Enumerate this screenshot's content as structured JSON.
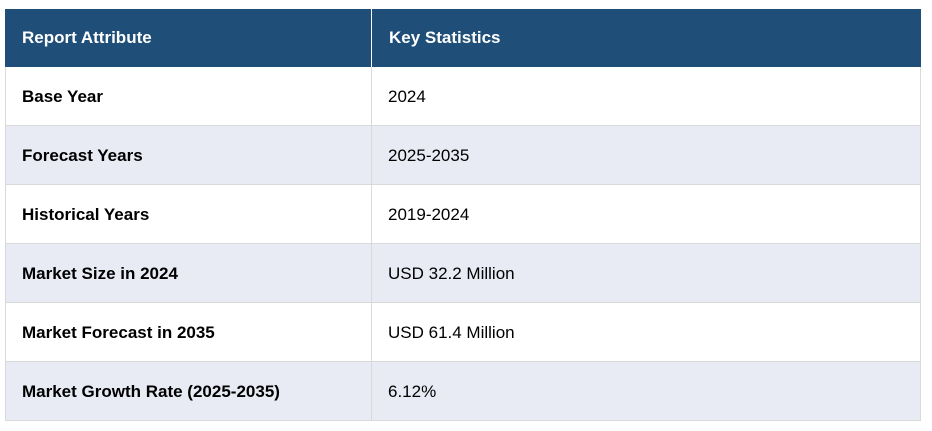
{
  "accent_color": "#1f4e79",
  "alt_row_color": "#e8eaf4",
  "border_color": "#d9d9d9",
  "table": {
    "columns": [
      "Report Attribute",
      "Key Statistics"
    ],
    "rows": [
      {
        "attribute": "Base Year",
        "value": "2024"
      },
      {
        "attribute": "Forecast Years",
        "value": "2025-2035"
      },
      {
        "attribute": "Historical Years",
        "value": "2019-2024"
      },
      {
        "attribute": "Market Size in 2024",
        "value": "USD 32.2 Million"
      },
      {
        "attribute": "Market Forecast in 2035",
        "value": "USD 61.4 Million"
      },
      {
        "attribute": "Market Growth Rate (2025-2035)",
        "value": "6.12%"
      }
    ]
  },
  "chart_data": {
    "type": "table",
    "title": "Report Attribute / Key Statistics",
    "columns": [
      "Report Attribute",
      "Key Statistics"
    ],
    "rows": [
      [
        "Base Year",
        "2024"
      ],
      [
        "Forecast Years",
        "2025-2035"
      ],
      [
        "Historical Years",
        "2019-2024"
      ],
      [
        "Market Size in 2024",
        "USD 32.2 Million"
      ],
      [
        "Market Forecast in 2035",
        "USD 61.4 Million"
      ],
      [
        "Market Growth Rate (2025-2035)",
        "6.12%"
      ]
    ]
  }
}
